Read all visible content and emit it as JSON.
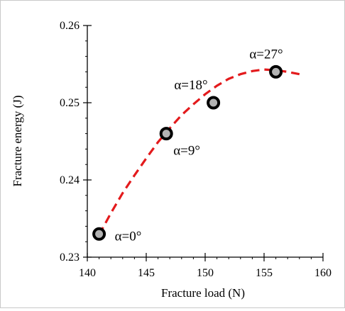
{
  "chart_data": {
    "type": "scatter",
    "title": "",
    "xlabel": "Fracture load (N)",
    "ylabel": "Fracture energy (J)",
    "xlim": [
      140,
      160
    ],
    "ylim": [
      0.23,
      0.26
    ],
    "xticks": [
      140,
      145,
      150,
      155,
      160
    ],
    "yticks": [
      0.23,
      0.24,
      0.25,
      0.26
    ],
    "xtick_labels": [
      "140",
      "145",
      "150",
      "155",
      "160"
    ],
    "ytick_labels": [
      "0.23",
      "0.24",
      "0.25",
      "0.26"
    ],
    "grid": false,
    "legend": "none",
    "series": [
      {
        "x": [
          141.0,
          146.7,
          150.7,
          156.0
        ],
        "y": [
          0.233,
          0.246,
          0.25,
          0.254
        ],
        "point_labels": [
          "α=0°",
          "α=9°",
          "α=18°",
          "α=27°"
        ],
        "marker_fill": "#b3b3b3",
        "marker_edge": "#000000"
      }
    ],
    "trendline": {
      "x": [
        141,
        142,
        143,
        144,
        145,
        146,
        147,
        148,
        149,
        150,
        151,
        152,
        153,
        154,
        155,
        156,
        157,
        158
      ],
      "y": [
        0.2329,
        0.2357,
        0.2383,
        0.2406,
        0.2428,
        0.2449,
        0.2467,
        0.2484,
        0.2498,
        0.2511,
        0.2522,
        0.2531,
        0.2537,
        0.2541,
        0.2543,
        0.2542,
        0.254,
        0.2537
      ],
      "color": "#e31a1c",
      "style": "dashed"
    }
  }
}
